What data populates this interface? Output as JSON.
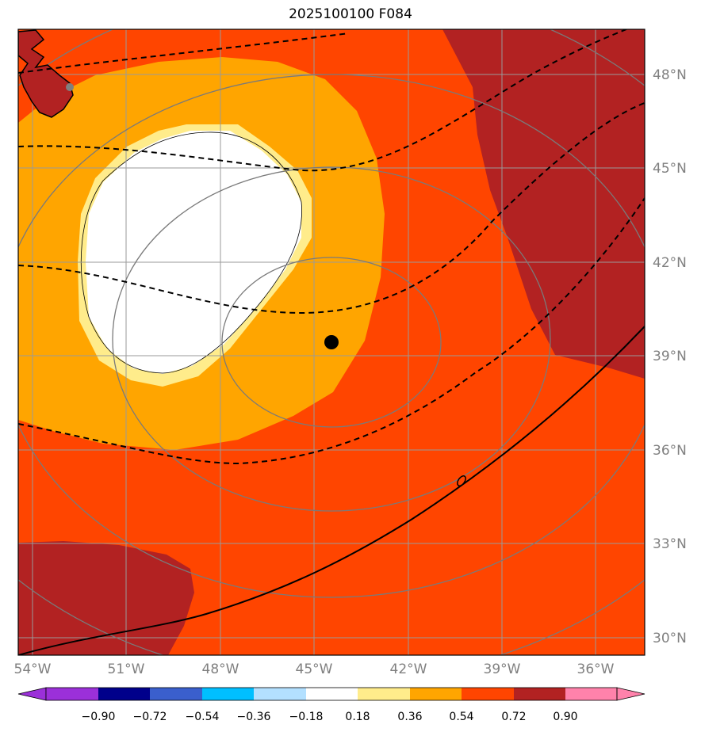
{
  "title": "2025100100 F084",
  "axes": {
    "lat_labels": [
      "48°N",
      "45°N",
      "42°N",
      "39°N",
      "36°N",
      "33°N",
      "30°N"
    ],
    "lon_labels": [
      "54°W",
      "51°W",
      "48°W",
      "45°W",
      "42°W",
      "39°W",
      "36°W"
    ]
  },
  "colorbar": {
    "ticks": [
      "−0.90",
      "−0.72",
      "−0.54",
      "−0.36",
      "−0.18",
      "0.18",
      "0.36",
      "0.54",
      "0.72",
      "0.90"
    ],
    "colors": [
      "#9b30d9",
      "#00008b",
      "#3a5fcd",
      "#00bfff",
      "#b3e0ff",
      "#ffffff",
      "#ffec8b",
      "#ffa500",
      "#ff4500",
      "#b22222",
      "#ff82ab"
    ]
  },
  "field_colors": {
    "high": "#b22222",
    "mid": "#ff4500",
    "low": "#ffa500",
    "fringe": "#ffec8b",
    "neutral": "#ffffff"
  },
  "marker": {
    "name": "storm-center",
    "lat": 39.5,
    "lon": -44.4
  }
}
